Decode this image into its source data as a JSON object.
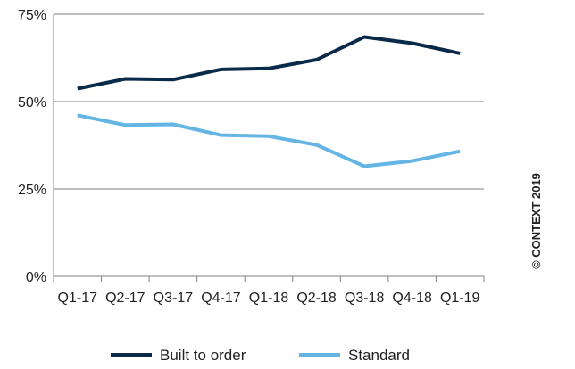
{
  "chart_data": {
    "type": "line",
    "title": "",
    "xlabel": "",
    "ylabel": "",
    "categories": [
      "Q1-17",
      "Q2-17",
      "Q3-17",
      "Q4-17",
      "Q1-18",
      "Q2-18",
      "Q3-18",
      "Q4-18",
      "Q1-19"
    ],
    "ylim": [
      0,
      75
    ],
    "yticks": [
      0,
      25,
      50,
      75
    ],
    "ytick_labels": [
      "0%",
      "25%",
      "50%",
      "75%"
    ],
    "grid": true,
    "legend_position": "bottom",
    "series": [
      {
        "name": "Built to order",
        "color": "#0a2a4a",
        "values": [
          53.7,
          56.5,
          56.3,
          59.2,
          59.5,
          62.0,
          68.5,
          66.7,
          63.8
        ]
      },
      {
        "name": "Standard",
        "color": "#64b4e4",
        "values": [
          46.1,
          43.3,
          43.5,
          40.4,
          40.1,
          37.6,
          31.5,
          33.0,
          35.8
        ]
      }
    ]
  },
  "watermark": "© CONTEXT 2019"
}
